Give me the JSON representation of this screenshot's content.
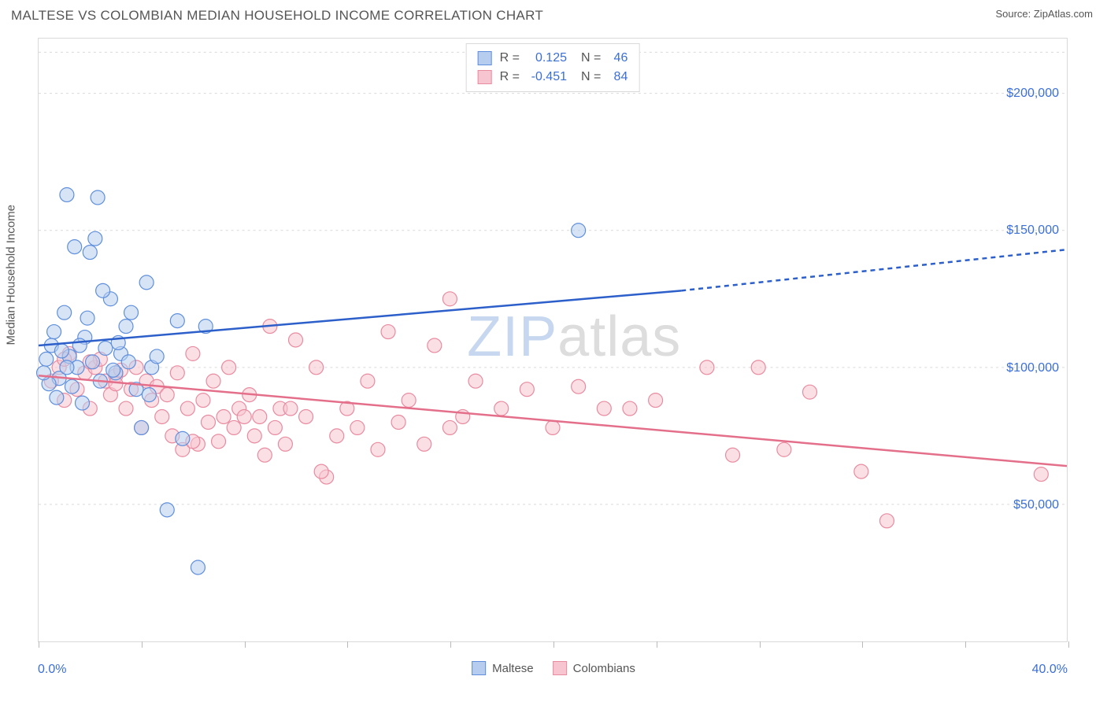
{
  "header": {
    "title": "MALTESE VS COLOMBIAN MEDIAN HOUSEHOLD INCOME CORRELATION CHART",
    "source": "Source: ZipAtlas.com"
  },
  "chart": {
    "type": "scatter",
    "background_color": "#ffffff",
    "border_color": "#d9d9d9",
    "grid_color": "#d9d9d9",
    "text_color": "#555555",
    "value_color": "#3b6fd8",
    "y_axis_title": "Median Household Income",
    "xlim": [
      0,
      40
    ],
    "ylim": [
      0,
      220000
    ],
    "x_tick_positions": [
      0,
      4,
      8,
      12,
      16,
      20,
      24,
      28,
      32,
      36,
      40
    ],
    "y_ticks": [
      {
        "v": 50000,
        "label": "$50,000"
      },
      {
        "v": 100000,
        "label": "$100,000"
      },
      {
        "v": 150000,
        "label": "$150,000"
      },
      {
        "v": 200000,
        "label": "$200,000"
      }
    ],
    "x_min_label": "0.0%",
    "x_max_label": "40.0%",
    "watermark": {
      "text_a": "ZIP",
      "text_b": "atlas",
      "color_a": "#c7d7ef",
      "color_b": "#dddddd"
    },
    "series": [
      {
        "id": "maltese",
        "name": "Maltese",
        "color_fill": "#b7cdef",
        "color_stroke": "#5f8fdc",
        "marker_radius": 9,
        "fill_opacity": 0.55,
        "trend": {
          "solid": {
            "x1": 0,
            "y1": 108000,
            "x2": 25,
            "y2": 128000
          },
          "dashed": {
            "x1": 25,
            "y1": 128000,
            "x2": 40,
            "y2": 143000
          },
          "stroke": "#2c5fc9",
          "width": 2.5,
          "dash": "6 5"
        },
        "points": [
          [
            1.1,
            163000
          ],
          [
            2.3,
            162000
          ],
          [
            0.5,
            108000
          ],
          [
            0.6,
            113000
          ],
          [
            0.8,
            96000
          ],
          [
            1.0,
            120000
          ],
          [
            1.2,
            104000
          ],
          [
            1.4,
            144000
          ],
          [
            1.5,
            100000
          ],
          [
            1.7,
            87000
          ],
          [
            1.8,
            111000
          ],
          [
            2.0,
            142000
          ],
          [
            2.2,
            147000
          ],
          [
            2.4,
            95000
          ],
          [
            2.6,
            107000
          ],
          [
            2.8,
            125000
          ],
          [
            3.0,
            98000
          ],
          [
            3.2,
            105000
          ],
          [
            3.4,
            115000
          ],
          [
            3.6,
            120000
          ],
          [
            3.8,
            92000
          ],
          [
            4.0,
            78000
          ],
          [
            4.2,
            131000
          ],
          [
            4.4,
            100000
          ],
          [
            4.6,
            104000
          ],
          [
            5.0,
            48000
          ],
          [
            5.4,
            117000
          ],
          [
            5.6,
            74000
          ],
          [
            6.2,
            27000
          ],
          [
            6.5,
            115000
          ],
          [
            0.3,
            103000
          ],
          [
            0.4,
            94000
          ],
          [
            0.7,
            89000
          ],
          [
            0.9,
            106000
          ],
          [
            1.1,
            100000
          ],
          [
            1.3,
            93000
          ],
          [
            1.6,
            108000
          ],
          [
            1.9,
            118000
          ],
          [
            2.1,
            102000
          ],
          [
            2.5,
            128000
          ],
          [
            2.9,
            99000
          ],
          [
            3.1,
            109000
          ],
          [
            3.5,
            102000
          ],
          [
            4.3,
            90000
          ],
          [
            0.2,
            98000
          ],
          [
            21.0,
            150000
          ]
        ]
      },
      {
        "id": "colombians",
        "name": "Colombians",
        "color_fill": "#f6c5cf",
        "color_stroke": "#e98ba0",
        "marker_radius": 9,
        "fill_opacity": 0.55,
        "trend": {
          "solid": {
            "x1": 0,
            "y1": 97000,
            "x2": 40,
            "y2": 64000
          },
          "dashed": null,
          "stroke": "#e46f8b",
          "width": 2.5,
          "dash": null
        },
        "points": [
          [
            0.5,
            95000
          ],
          [
            0.8,
            100000
          ],
          [
            1.0,
            88000
          ],
          [
            1.2,
            105000
          ],
          [
            1.5,
            92000
          ],
          [
            1.8,
            98000
          ],
          [
            2.0,
            85000
          ],
          [
            2.2,
            100000
          ],
          [
            2.4,
            103000
          ],
          [
            2.6,
            95000
          ],
          [
            2.8,
            90000
          ],
          [
            3.0,
            97000
          ],
          [
            3.2,
            99000
          ],
          [
            3.4,
            85000
          ],
          [
            3.6,
            92000
          ],
          [
            3.8,
            100000
          ],
          [
            4.0,
            78000
          ],
          [
            4.2,
            95000
          ],
          [
            4.4,
            88000
          ],
          [
            4.6,
            93000
          ],
          [
            4.8,
            82000
          ],
          [
            5.0,
            90000
          ],
          [
            5.2,
            75000
          ],
          [
            5.4,
            98000
          ],
          [
            5.6,
            70000
          ],
          [
            5.8,
            85000
          ],
          [
            6.0,
            105000
          ],
          [
            6.2,
            72000
          ],
          [
            6.4,
            88000
          ],
          [
            6.6,
            80000
          ],
          [
            6.8,
            95000
          ],
          [
            7.0,
            73000
          ],
          [
            7.2,
            82000
          ],
          [
            7.4,
            100000
          ],
          [
            7.6,
            78000
          ],
          [
            7.8,
            85000
          ],
          [
            8.0,
            82000
          ],
          [
            8.2,
            90000
          ],
          [
            8.4,
            75000
          ],
          [
            8.6,
            82000
          ],
          [
            8.8,
            68000
          ],
          [
            9.0,
            115000
          ],
          [
            9.2,
            78000
          ],
          [
            9.4,
            85000
          ],
          [
            9.6,
            72000
          ],
          [
            10.0,
            110000
          ],
          [
            10.4,
            82000
          ],
          [
            10.8,
            100000
          ],
          [
            11.2,
            60000
          ],
          [
            11.6,
            75000
          ],
          [
            12.0,
            85000
          ],
          [
            12.4,
            78000
          ],
          [
            12.8,
            95000
          ],
          [
            13.2,
            70000
          ],
          [
            13.6,
            113000
          ],
          [
            14.0,
            80000
          ],
          [
            14.4,
            88000
          ],
          [
            15.0,
            72000
          ],
          [
            15.4,
            108000
          ],
          [
            16.0,
            78000
          ],
          [
            16.0,
            125000
          ],
          [
            16.5,
            82000
          ],
          [
            17.0,
            95000
          ],
          [
            18.0,
            85000
          ],
          [
            19.0,
            92000
          ],
          [
            20.0,
            78000
          ],
          [
            21.0,
            93000
          ],
          [
            22.0,
            85000
          ],
          [
            23.0,
            85000
          ],
          [
            24.0,
            88000
          ],
          [
            26.0,
            100000
          ],
          [
            27.0,
            68000
          ],
          [
            28.0,
            100000
          ],
          [
            29.0,
            70000
          ],
          [
            30.0,
            91000
          ],
          [
            32.0,
            62000
          ],
          [
            33.0,
            44000
          ],
          [
            39.0,
            61000
          ],
          [
            1.0,
            103000
          ],
          [
            2.0,
            102000
          ],
          [
            3.0,
            94000
          ],
          [
            6.0,
            73000
          ],
          [
            9.8,
            85000
          ],
          [
            11.0,
            62000
          ]
        ]
      }
    ],
    "legend_stats": [
      {
        "swatch_fill": "#b7cdef",
        "swatch_stroke": "#5f8fdc",
        "r_label": "R =",
        "r_value": "0.125",
        "n_label": "N =",
        "n_value": "46"
      },
      {
        "swatch_fill": "#f6c5cf",
        "swatch_stroke": "#e98ba0",
        "r_label": "R =",
        "r_value": "-0.451",
        "n_label": "N =",
        "n_value": "84"
      }
    ],
    "bottom_legend": [
      {
        "swatch_fill": "#b7cdef",
        "swatch_stroke": "#5f8fdc",
        "label": "Maltese"
      },
      {
        "swatch_fill": "#f6c5cf",
        "swatch_stroke": "#e98ba0",
        "label": "Colombians"
      }
    ]
  }
}
